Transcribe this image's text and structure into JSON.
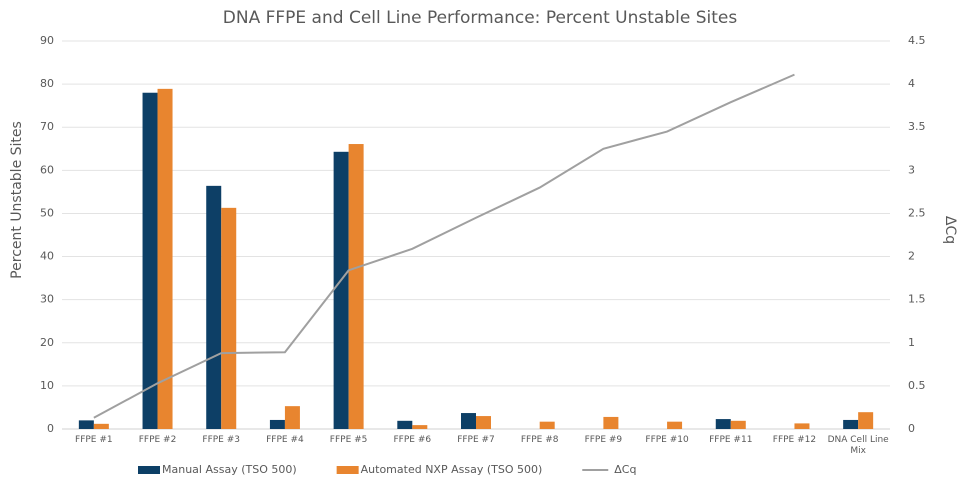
{
  "chart_data": {
    "type": "bar",
    "title": "DNA FFPE and Cell Line Performance: Percent Unstable Sites",
    "y_label": "Percent Unstable Sites",
    "y2_label": "ΔCq",
    "categories": [
      "FFPE #1",
      "FFPE #2",
      "FFPE #3",
      "FFPE #4",
      "FFPE #5",
      "FFPE #6",
      "FFPE #7",
      "FFPE #8",
      "FFPE #9",
      "FFPE #10",
      "FFPE #11",
      "FFPE #12",
      "DNA Cell Line Mix"
    ],
    "series": [
      {
        "name": "Manual Assay (TSO 500)",
        "color": "#0d3f66",
        "type": "bar",
        "values": [
          2,
          78,
          56.4,
          2.1,
          64.3,
          1.9,
          3.7,
          null,
          null,
          null,
          2.3,
          null,
          2.1
        ]
      },
      {
        "name": "Automated NXP Assay (TSO 500)",
        "color": "#e8852f",
        "type": "bar",
        "values": [
          1.2,
          78.9,
          51.3,
          5.3,
          66.1,
          0.9,
          3,
          1.7,
          2.8,
          1.7,
          1.9,
          1.3,
          3.9
        ]
      },
      {
        "name": "ΔCq",
        "color": "#a0a0a0",
        "type": "line",
        "axis": "y2",
        "values": [
          0.13,
          0.53,
          0.88,
          0.89,
          1.84,
          2.09,
          2.45,
          2.8,
          3.25,
          3.45,
          3.79,
          4.11,
          null
        ]
      }
    ],
    "ylim": [
      0,
      90
    ],
    "yticks": [
      0,
      10,
      20,
      30,
      40,
      50,
      60,
      70,
      80,
      90
    ],
    "y2lim": [
      0,
      4.5
    ],
    "y2ticks": [
      0,
      0.5,
      1,
      1.5,
      2,
      2.5,
      3,
      3.5,
      4,
      4.5
    ],
    "grid": true
  }
}
